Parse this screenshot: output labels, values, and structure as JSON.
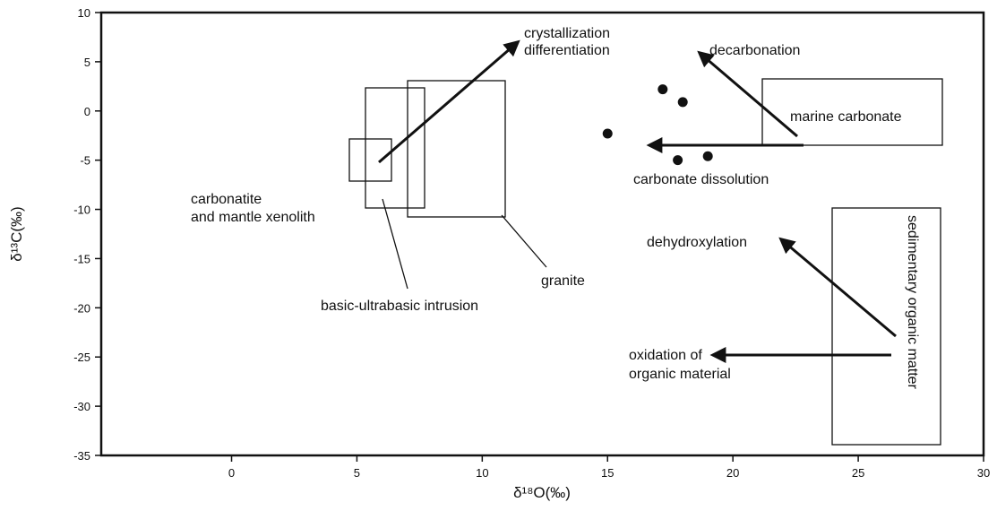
{
  "chart_data": {
    "type": "scatter",
    "x_label": "δ¹⁸O(‰)",
    "y_label": "δ¹³C(‰)",
    "x": [
      15.0,
      17.2,
      18.0,
      17.8,
      19.0
    ],
    "values": [
      -2.3,
      2.2,
      0.9,
      -5.0,
      -4.6
    ],
    "color": "#111111",
    "xlim": [
      -5.2,
      30
    ],
    "ylim": [
      -35,
      10
    ],
    "xticks": [
      0,
      5,
      10,
      15,
      20,
      25,
      30
    ],
    "yticks": [
      10,
      5,
      0,
      -5,
      -10,
      -15,
      -20,
      -25,
      -30,
      -35
    ],
    "annotations": [
      "crystallization",
      "differentiation",
      "decarbonation",
      "marine carbonate",
      "carbonate dissolution",
      "carbonatite",
      "and mantle xenolith",
      "granite",
      "basic-ultrabasic intrusion",
      "dehydroxylation",
      "oxidation of",
      "organic material",
      "sedimentary organic matter"
    ]
  }
}
